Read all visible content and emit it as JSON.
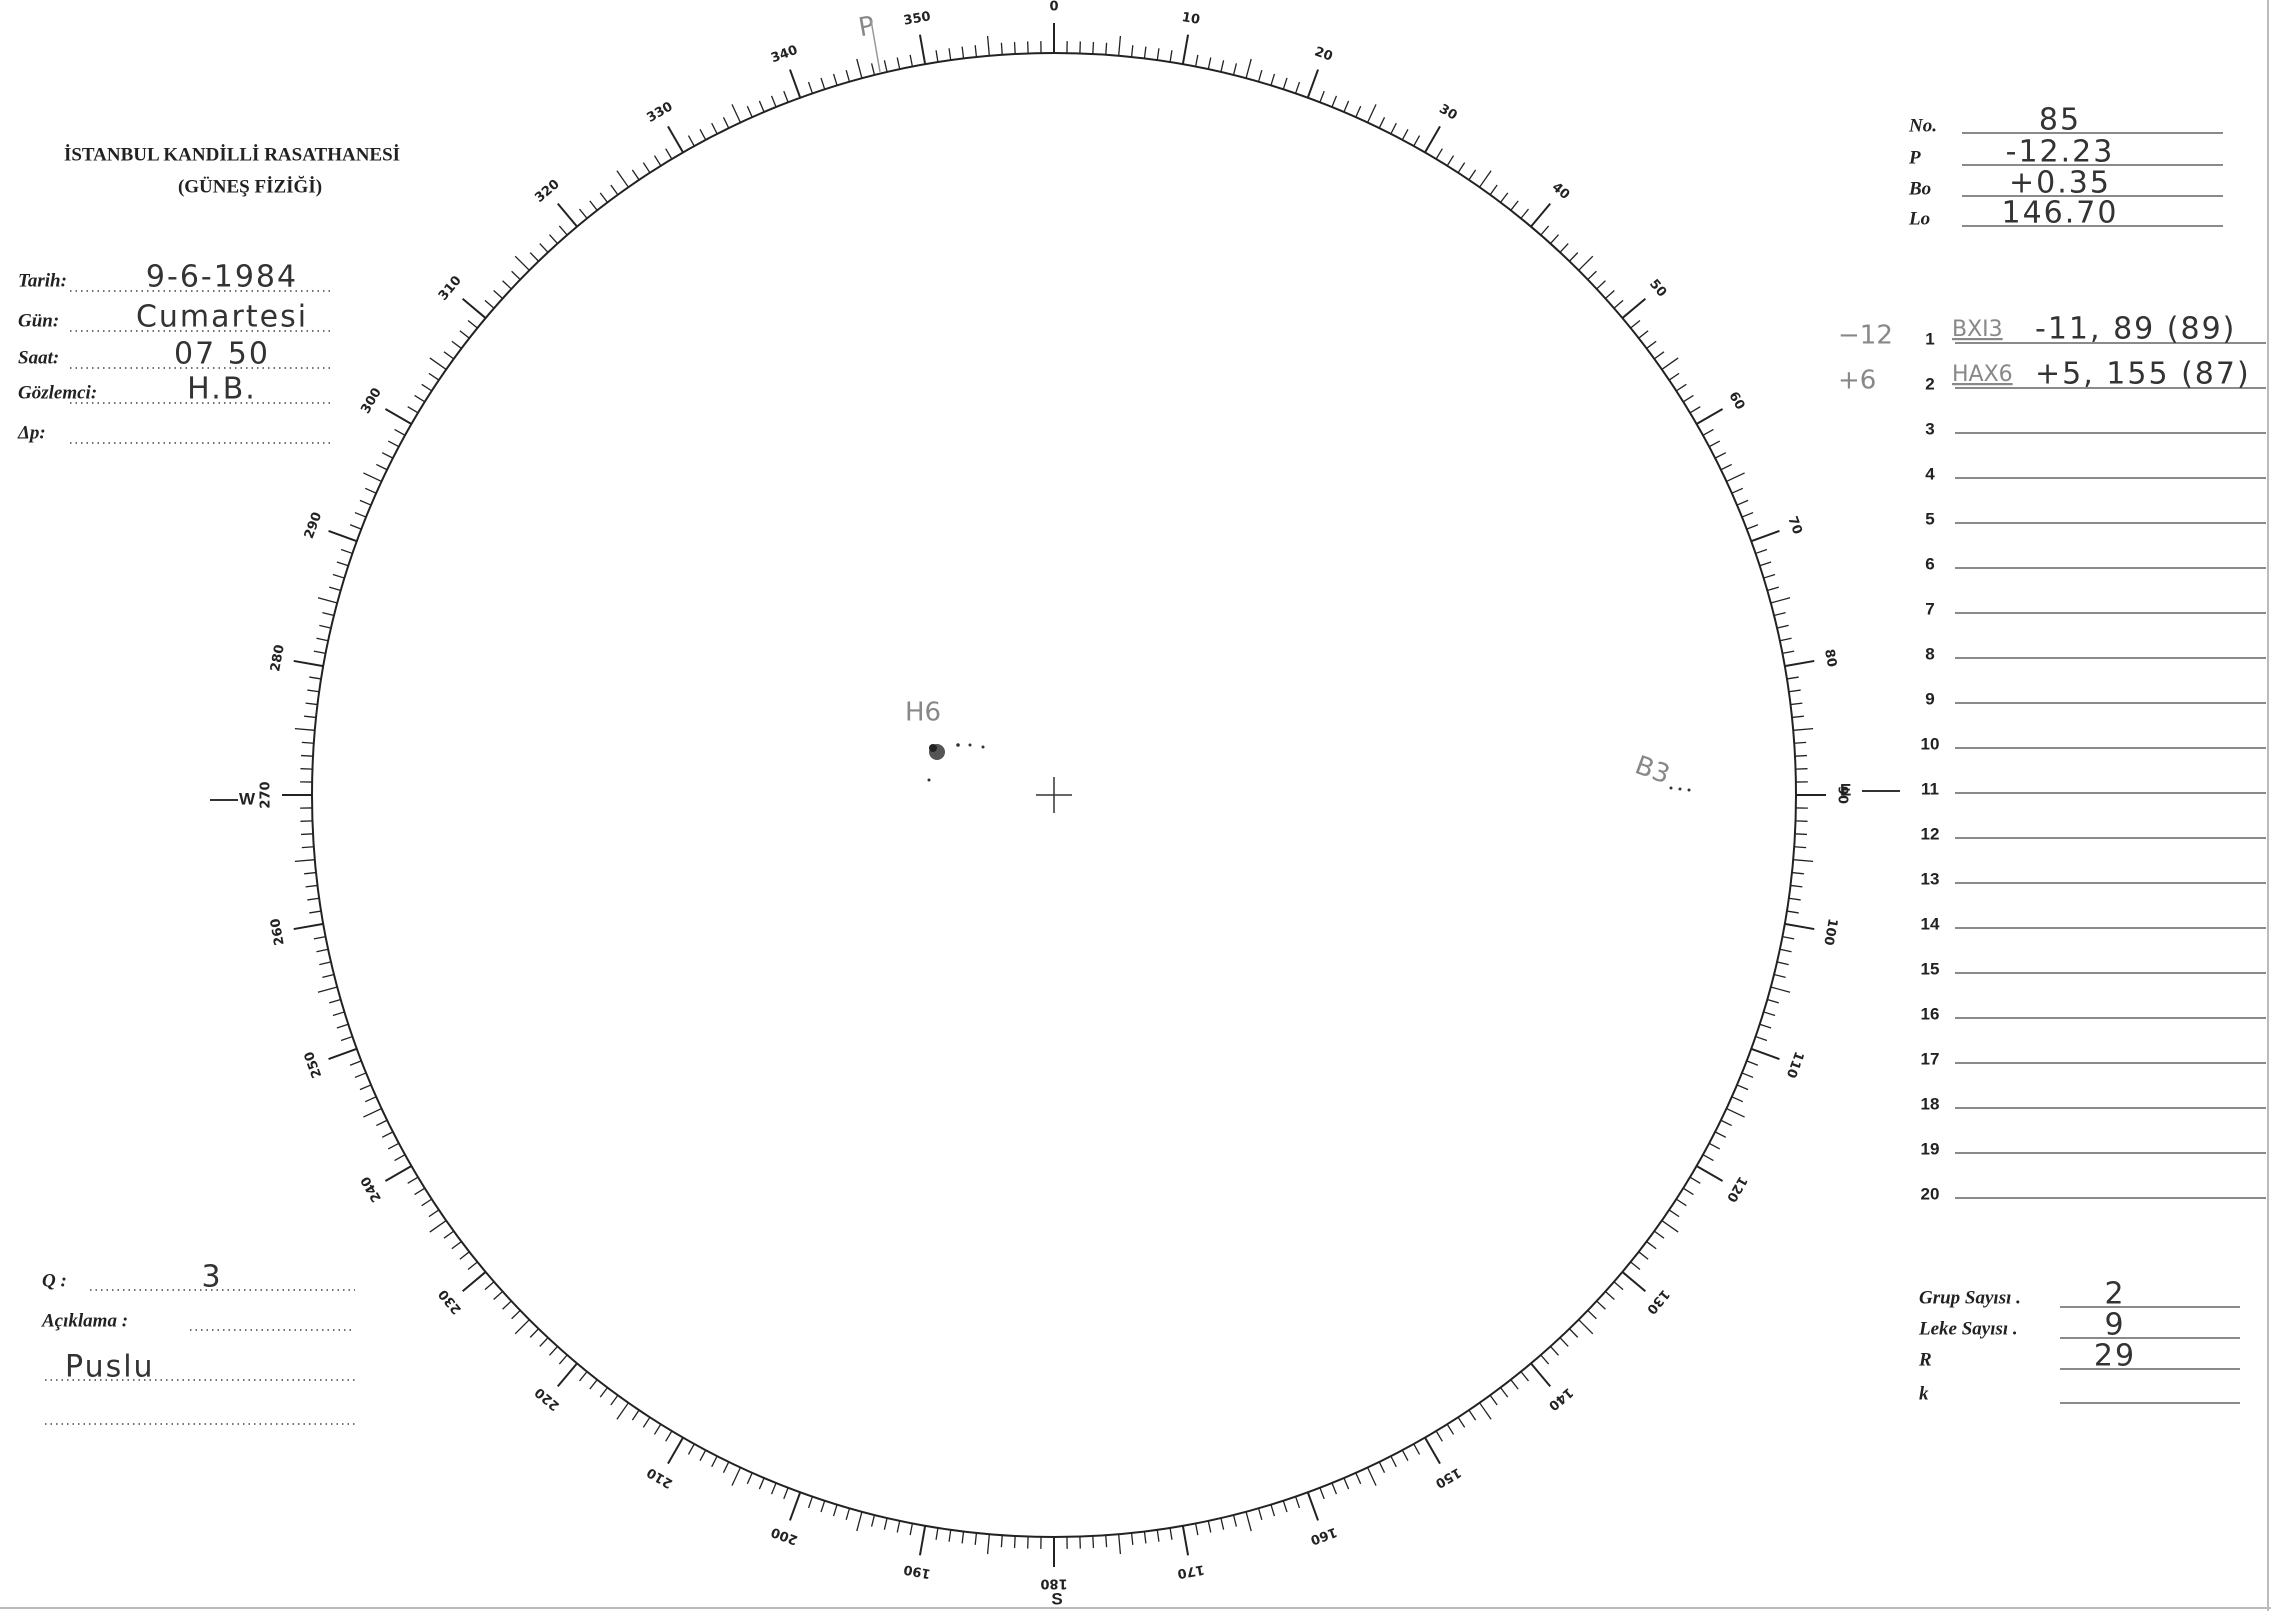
{
  "header": {
    "institution": "İSTANBUL KANDİLLİ RASATHANESİ",
    "department": "(GÜNEŞ FİZİĞİ)"
  },
  "fields": [
    {
      "label": "Tarih:",
      "value": "9-6-1984"
    },
    {
      "label": "Gün:",
      "value": "Cumartesi"
    },
    {
      "label": "Saat:",
      "value": "07 50"
    },
    {
      "label": "Gözlemci:",
      "value": "H.B."
    },
    {
      "label": "Δp:"
    }
  ],
  "parameters": [
    {
      "label": "No.",
      "value": "85"
    },
    {
      "label": "P",
      "value": "-12.23"
    },
    {
      "label": "Bo",
      "value": "+0.35"
    },
    {
      "label": "Lo",
      "value": "146.70"
    }
  ],
  "groups": {
    "numbers": [
      1,
      2,
      3,
      4,
      5,
      6,
      7,
      8,
      9,
      10,
      11,
      12,
      13,
      14,
      15,
      16,
      17,
      18,
      19,
      20
    ],
    "entries": [
      {
        "note": "−12",
        "class": "BXI3",
        "position": "-11, 89 (89)"
      },
      {
        "note": "+6",
        "class": "HAX6",
        "position": "+5, 155 (87)"
      }
    ]
  },
  "dial": {
    "labels": [
      0,
      10,
      20,
      30,
      40,
      50,
      60,
      70,
      80,
      90,
      100,
      110,
      120,
      130,
      140,
      150,
      160,
      170,
      180,
      190,
      200,
      210,
      220,
      230,
      240,
      250,
      260,
      270,
      280,
      290,
      300,
      310,
      320,
      330,
      340,
      350
    ],
    "west": "W",
    "east": "E",
    "south": "S"
  },
  "drawing": {
    "pole_mark": "P",
    "groups": [
      "H6",
      "B3"
    ]
  },
  "summary": [
    {
      "label": "Grup Sayısı .",
      "value": "2"
    },
    {
      "label": "Leke Sayısı .",
      "value": "9"
    },
    {
      "label": "R",
      "value": "29"
    },
    {
      "label": "k"
    }
  ],
  "notes": {
    "q_label": "Q :",
    "q_value": "3",
    "comment_label": "Açıklama :",
    "comment": "Puslu"
  }
}
